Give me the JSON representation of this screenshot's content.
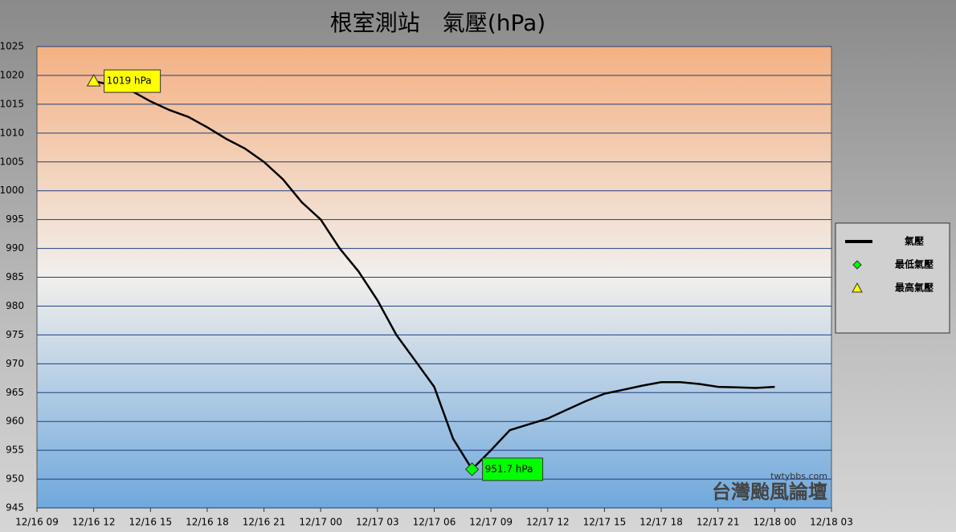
{
  "chart_data": {
    "type": "line",
    "title": "根室測站　氣壓(hPa)",
    "series": [
      {
        "name": "氣壓",
        "color": "#000000",
        "x": [
          "12/16 12",
          "12/16 13",
          "12/16 14",
          "12/16 15",
          "12/16 16",
          "12/16 17",
          "12/16 18",
          "12/16 19",
          "12/16 20",
          "12/16 21",
          "12/16 22",
          "12/16 23",
          "12/17 00",
          "12/17 01",
          "12/17 02",
          "12/17 03",
          "12/17 04",
          "12/17 05",
          "12/17 06",
          "12/17 07",
          "12/17 08",
          "12/17 09",
          "12/17 10",
          "12/17 11",
          "12/17 12",
          "12/17 13",
          "12/17 14",
          "12/17 15",
          "12/17 16",
          "12/17 17",
          "12/17 18",
          "12/17 19",
          "12/17 20",
          "12/17 21",
          "12/17 22",
          "12/17 23",
          "12/18 00"
        ],
        "values": [
          1019,
          1018.3,
          1017.3,
          1015.5,
          1014,
          1012.8,
          1011,
          1009,
          1007.3,
          1005,
          1002,
          998,
          995,
          990,
          986,
          981,
          975,
          970.5,
          966,
          957,
          951.7,
          955,
          958.5,
          959.5,
          960.5,
          962,
          963.5,
          964.8,
          965.5,
          966.2,
          966.8,
          966.8,
          966.5,
          966,
          965.9,
          965.8,
          966
        ]
      },
      {
        "name": "最低氣壓",
        "color": "#00ff00",
        "x": [
          "12/17 08"
        ],
        "values": [
          951.7
        ],
        "value_labels": [
          "951.7 hPa"
        ]
      },
      {
        "name": "最高氣壓",
        "color": "#ffff00",
        "x": [
          "12/16 12"
        ],
        "values": [
          1019
        ],
        "value_labels": [
          "1019 hPa"
        ]
      }
    ],
    "xlim": [
      "12/16 09",
      "12/18 03"
    ],
    "xticks": [
      "12/16 09",
      "12/16 12",
      "12/16 15",
      "12/16 18",
      "12/16 21",
      "12/17 00",
      "12/17 03",
      "12/17 06",
      "12/17 09",
      "12/17 12",
      "12/17 15",
      "12/17 18",
      "12/17 21",
      "12/18 00",
      "12/18 03"
    ],
    "ylim": [
      945,
      1025
    ],
    "yticks": [
      945,
      950,
      955,
      960,
      965,
      970,
      975,
      980,
      985,
      990,
      995,
      1000,
      1005,
      1010,
      1015,
      1020,
      1025
    ],
    "grid": true,
    "legend": "right",
    "annotations": [
      "twtybbs.com",
      "台灣颱風論壇"
    ]
  }
}
